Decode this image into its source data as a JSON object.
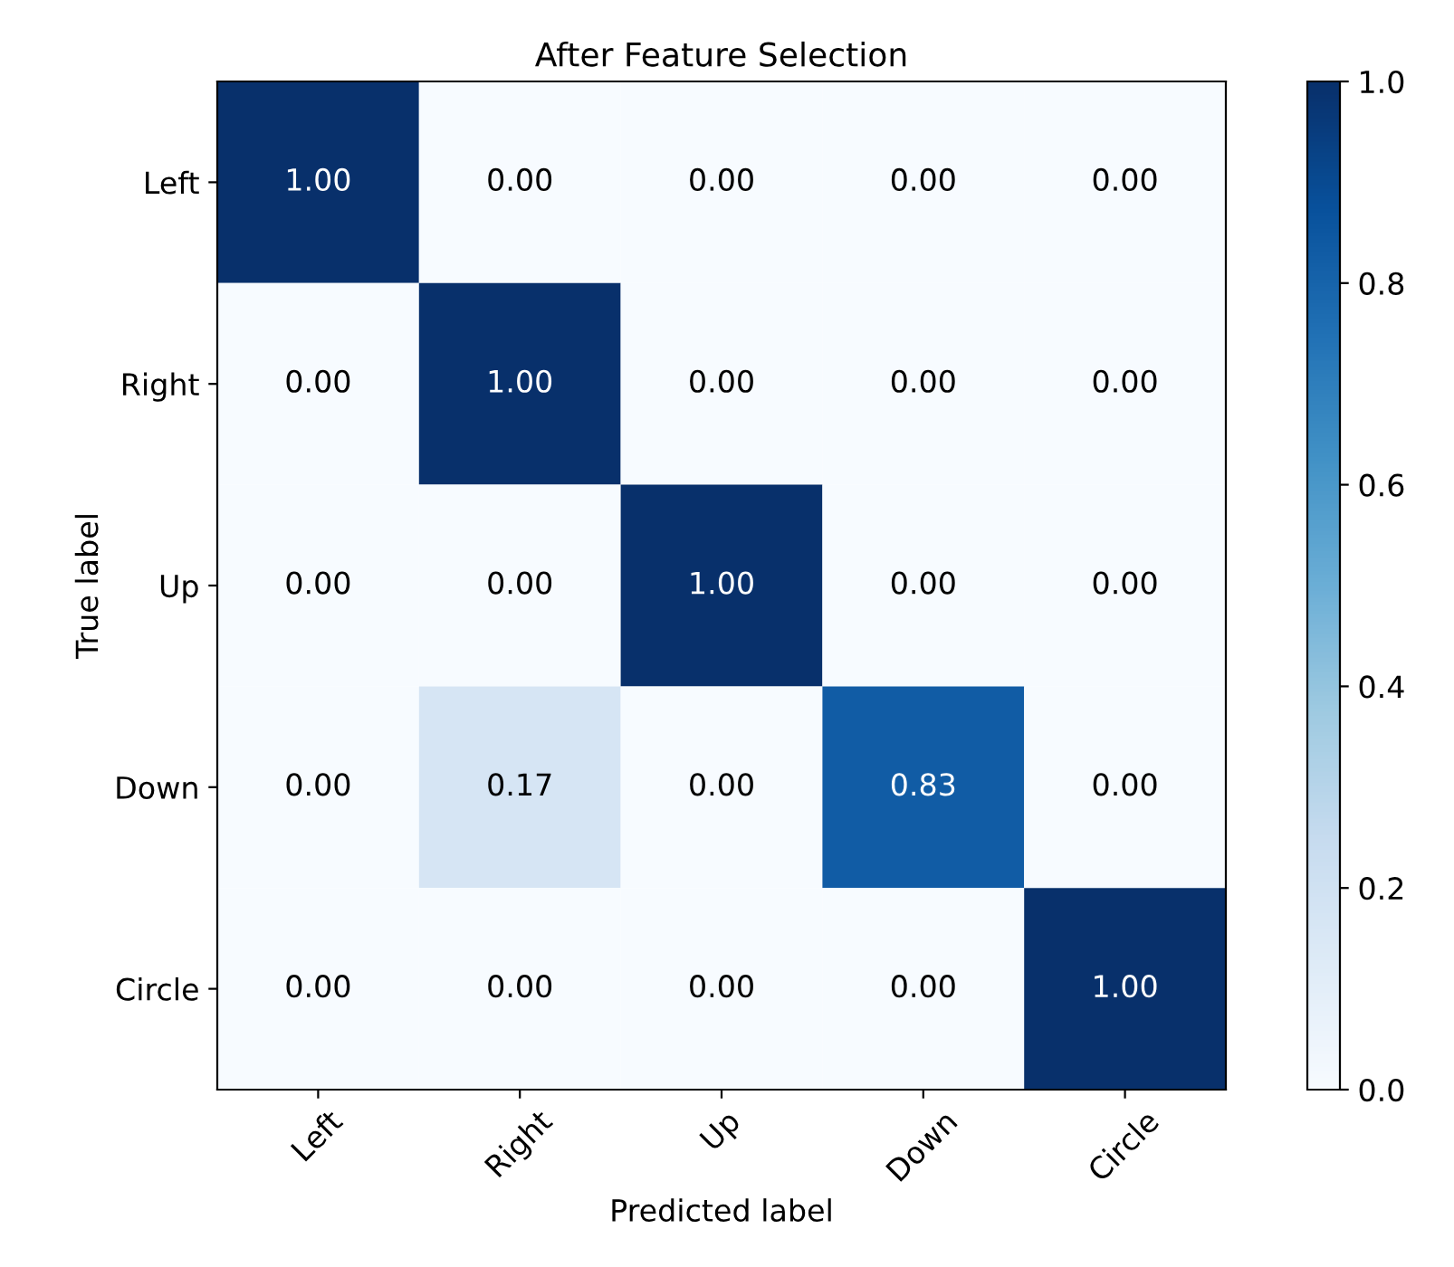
{
  "chart_data": {
    "type": "heatmap",
    "title": "After Feature Selection",
    "xlabel": "Predicted label",
    "ylabel": "True label",
    "categories": [
      "Left",
      "Right",
      "Up",
      "Down",
      "Circle"
    ],
    "y_categories": [
      "Left",
      "Right",
      "Up",
      "Down",
      "Circle"
    ],
    "cells": [
      [
        1.0,
        0.0,
        0.0,
        0.0,
        0.0
      ],
      [
        0.0,
        1.0,
        0.0,
        0.0,
        0.0
      ],
      [
        0.0,
        0.0,
        1.0,
        0.0,
        0.0
      ],
      [
        0.0,
        0.17,
        0.0,
        0.83,
        0.0
      ],
      [
        0.0,
        0.0,
        0.0,
        0.0,
        1.0
      ]
    ],
    "cell_labels": [
      [
        "1.00",
        "0.00",
        "0.00",
        "0.00",
        "0.00"
      ],
      [
        "0.00",
        "1.00",
        "0.00",
        "0.00",
        "0.00"
      ],
      [
        "0.00",
        "0.00",
        "1.00",
        "0.00",
        "0.00"
      ],
      [
        "0.00",
        "0.17",
        "0.00",
        "0.83",
        "0.00"
      ],
      [
        "0.00",
        "0.00",
        "0.00",
        "0.00",
        "1.00"
      ]
    ],
    "clim": [
      0,
      1
    ],
    "cticks": [
      {
        "value": 0,
        "label": "0.0"
      },
      {
        "value": 0.2,
        "label": "0.2"
      },
      {
        "value": 0.4,
        "label": "0.4"
      },
      {
        "value": 0.6,
        "label": "0.6"
      },
      {
        "value": 0.8,
        "label": "0.8"
      },
      {
        "value": 1,
        "label": "1.0"
      }
    ]
  }
}
